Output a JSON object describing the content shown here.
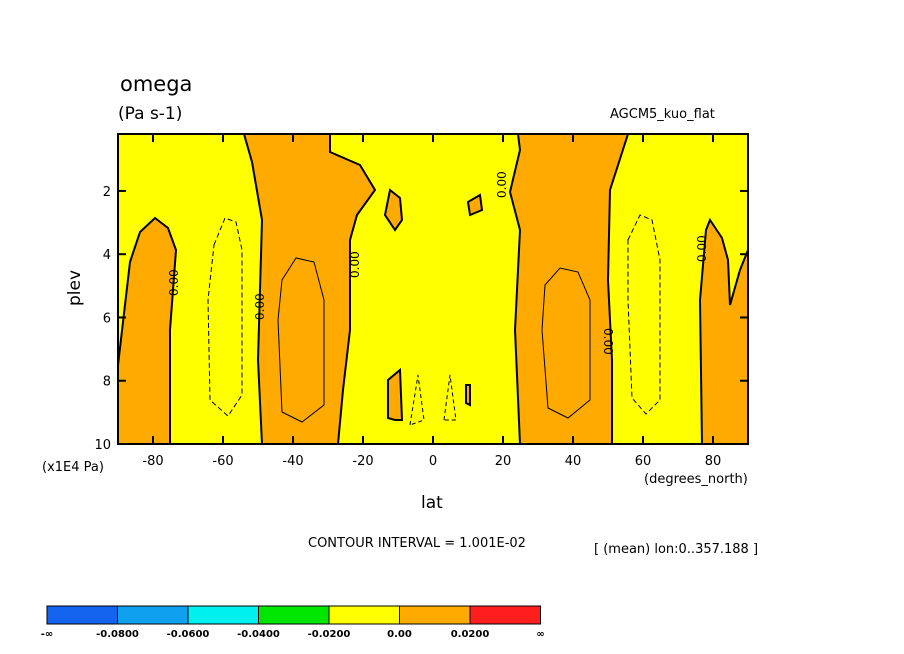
{
  "chart_data": {
    "type": "contour",
    "title": "omega",
    "units": "(Pa s-1)",
    "dataset": "AGCM5_kuo_flat",
    "xlabel": "lat",
    "ylabel": "plev",
    "x_unit_label": "(degrees_north)",
    "y_unit_label": "(x1E4 Pa)",
    "xlim": [
      -90,
      90
    ],
    "ylim": [
      10,
      0.2
    ],
    "x_ticks": [
      -80,
      -60,
      -40,
      -20,
      0,
      20,
      40,
      60,
      80
    ],
    "x_tick_labels": [
      "-80",
      "-60",
      "-40",
      "-20",
      "0",
      "20",
      "40",
      "60",
      "80"
    ],
    "y_ticks": [
      2,
      4,
      6,
      8,
      10
    ],
    "y_tick_labels": [
      "2",
      "4",
      "6",
      "8",
      "10"
    ],
    "contour_interval_text": "CONTOUR INTERVAL = 1.001E-02",
    "mean_note": "[ (mean) lon:0..357.188 ]",
    "contour_labels": [
      "0.00",
      "0.00",
      "0.00",
      "0.00",
      "0.00",
      "0.00"
    ],
    "colorbar": {
      "colors": [
        "#1464f0",
        "#0fa0f0",
        "#00f0f0",
        "#00e600",
        "#ffff00",
        "#ffaa00",
        "#ff1e1e"
      ],
      "labels": [
        "-∞",
        "-0.0800",
        "-0.0600",
        "-0.0400",
        "-0.0200",
        "0.00",
        "0.0200",
        "∞"
      ]
    },
    "regions": [
      {
        "sign": "positive",
        "description": "lat -90 to -74, plev 3-10"
      },
      {
        "sign": "positive",
        "description": "lat -54 to -30, full column"
      },
      {
        "sign": "positive",
        "description": "lat 20 to 52, full column"
      },
      {
        "sign": "positive",
        "description": "lat 74 to 90, plev 3-10"
      },
      {
        "sign": "negative",
        "description": "lat -72 to -48 and lat 56 to 74"
      },
      {
        "sign": "negative",
        "description": "lat -18 to 18 core"
      }
    ]
  }
}
